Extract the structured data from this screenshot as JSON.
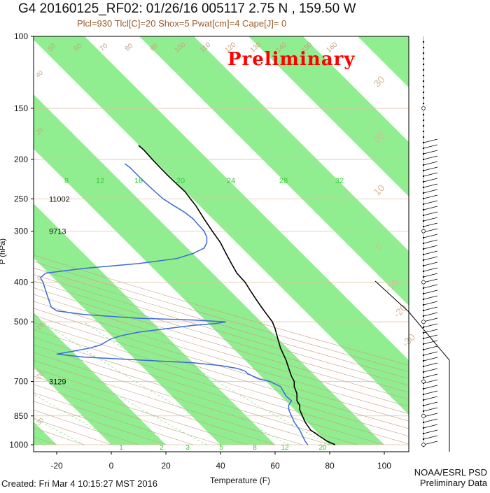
{
  "header": {
    "title": "G4 20160125_RF02: 01/26/16 005117   2.75 N , 159.50 W",
    "subtitle": "Plcl=930 Tlcl[C]=20 Shox=5 Pwat[cm]=4 Cape[J]= 0",
    "watermark": "Preliminary"
  },
  "footer": {
    "created": "Created: Fri Mar  4 10:15:27 MST 2016",
    "credit_line1": "NOAA/ESRL PSD",
    "credit_line2": "Preliminary Data"
  },
  "colors": {
    "band_fill": "#90ee90",
    "isobar": "#e0c0a0",
    "dry_adiabat": "#c8a080",
    "moist_adiabat": "#90e090",
    "temperature": "#000000",
    "dewpoint": "#3a6bd6",
    "mixing_label": "#33cc33",
    "height_label": "#111111",
    "watermark": "#ff0000"
  },
  "chart_data": {
    "type": "line",
    "title": "G4 20160125_RF02: 01/26/16 005117   2.75 N , 159.50 W",
    "xlabel": "Temperature (F)",
    "ylabel": "P (hPa)",
    "x_ticks": [
      "-20",
      "0",
      "20",
      "40",
      "60",
      "80",
      "100"
    ],
    "y_ticks": [
      "100",
      "150",
      "200",
      "250",
      "300",
      "400",
      "500",
      "700",
      "850",
      "1000"
    ],
    "height_labels": [
      {
        "p": 250,
        "label": "11002"
      },
      {
        "p": 300,
        "label": "9713"
      },
      {
        "p": 700,
        "label": "3129"
      }
    ],
    "mixing_ratio_labels_upper": [
      "8",
      "12",
      "16",
      "20",
      "24",
      "28",
      "32"
    ],
    "mixing_ratio_labels_lower": [
      "1",
      "2",
      "3",
      "5",
      "8",
      "12",
      "20"
    ],
    "dry_adiabat_labels_top": [
      "50",
      "60",
      "70",
      "80",
      "90",
      "100",
      "110",
      "120",
      "130",
      "140",
      "150",
      "160"
    ],
    "dry_adiabat_labels_left": [
      "40",
      "20",
      "0",
      "-10",
      "-20",
      "-30"
    ],
    "isotherm_labels_right": [
      "30",
      "20",
      "10",
      "0",
      "-10",
      "-20",
      "-30"
    ],
    "series": [
      {
        "points": [
          [
            1000,
            82
          ],
          [
            980,
            79
          ],
          [
            950,
            76
          ],
          [
            920,
            73
          ],
          [
            900,
            72
          ],
          [
            880,
            71
          ],
          [
            850,
            70
          ],
          [
            820,
            69
          ],
          [
            800,
            69
          ],
          [
            780,
            68
          ],
          [
            750,
            68
          ],
          [
            720,
            67
          ],
          [
            700,
            67
          ],
          [
            680,
            66
          ],
          [
            650,
            65
          ],
          [
            620,
            64
          ],
          [
            600,
            63
          ],
          [
            580,
            62
          ],
          [
            550,
            61
          ],
          [
            520,
            60
          ],
          [
            500,
            59
          ],
          [
            480,
            57
          ],
          [
            460,
            55
          ],
          [
            440,
            53
          ],
          [
            420,
            51
          ],
          [
            400,
            49
          ],
          [
            380,
            46
          ],
          [
            360,
            44
          ],
          [
            340,
            42
          ],
          [
            330,
            41
          ],
          [
            320,
            40
          ],
          [
            300,
            37
          ],
          [
            280,
            34
          ],
          [
            260,
            31
          ],
          [
            250,
            29
          ],
          [
            240,
            27
          ],
          [
            230,
            24
          ],
          [
            220,
            21
          ],
          [
            210,
            18
          ],
          [
            200,
            15
          ],
          [
            190,
            12
          ],
          [
            185,
            10
          ]
        ]
      },
      {
        "points": [
          [
            1000,
            72
          ],
          [
            980,
            71
          ],
          [
            950,
            70
          ],
          [
            920,
            69
          ],
          [
            900,
            68
          ],
          [
            880,
            67
          ],
          [
            850,
            66
          ],
          [
            820,
            65
          ],
          [
            800,
            65
          ],
          [
            780,
            66
          ],
          [
            760,
            64
          ],
          [
            740,
            63
          ],
          [
            720,
            62
          ],
          [
            700,
            58
          ],
          [
            690,
            54
          ],
          [
            680,
            52
          ],
          [
            670,
            50
          ],
          [
            660,
            49
          ],
          [
            650,
            46
          ],
          [
            640,
            40
          ],
          [
            630,
            30
          ],
          [
            620,
            10
          ],
          [
            610,
            -10
          ],
          [
            600,
            -20
          ],
          [
            590,
            -14
          ],
          [
            580,
            -8
          ],
          [
            570,
            -4
          ],
          [
            560,
            -2
          ],
          [
            550,
            0
          ],
          [
            540,
            4
          ],
          [
            530,
            10
          ],
          [
            520,
            20
          ],
          [
            510,
            30
          ],
          [
            505,
            38
          ],
          [
            500,
            42
          ],
          [
            495,
            30
          ],
          [
            490,
            10
          ],
          [
            480,
            -10
          ],
          [
            470,
            -20
          ],
          [
            460,
            -22
          ],
          [
            440,
            -23
          ],
          [
            420,
            -24
          ],
          [
            400,
            -25
          ],
          [
            390,
            -26
          ],
          [
            380,
            -24
          ],
          [
            370,
            -10
          ],
          [
            360,
            10
          ],
          [
            350,
            24
          ],
          [
            340,
            30
          ],
          [
            330,
            34
          ],
          [
            320,
            35
          ],
          [
            310,
            35
          ],
          [
            300,
            34
          ],
          [
            290,
            32
          ],
          [
            280,
            30
          ],
          [
            270,
            27
          ],
          [
            260,
            23
          ],
          [
            250,
            19
          ],
          [
            240,
            16
          ],
          [
            230,
            13
          ],
          [
            220,
            10
          ],
          [
            210,
            7
          ],
          [
            205,
            5
          ]
        ]
      }
    ],
    "xlim": [
      -27,
      108
    ],
    "ylim": [
      1000,
      100
    ],
    "y_scale": "log"
  }
}
